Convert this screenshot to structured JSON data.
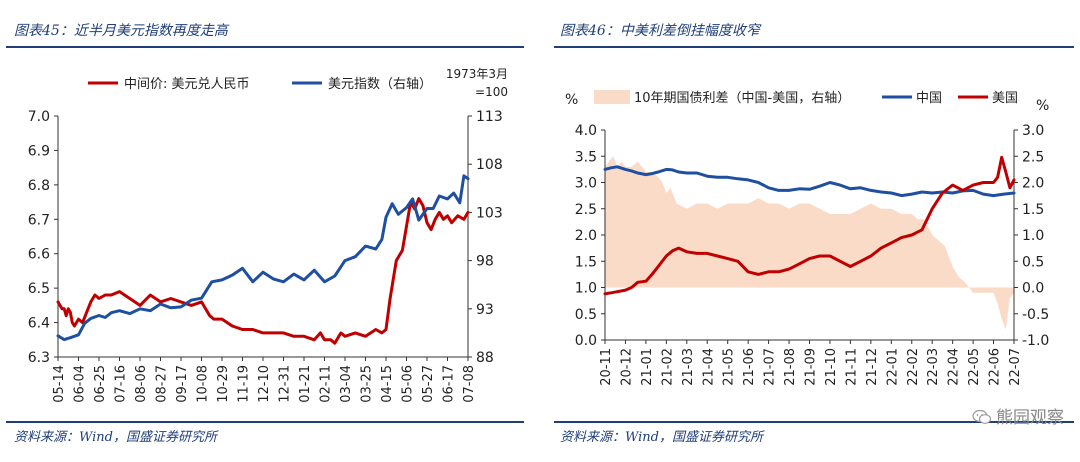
{
  "left": {
    "title": "图表45：近半月美元指数再度走高",
    "source": "资料来源：Wind，国盛证券研究所",
    "chart_data": {
      "type": "line",
      "legend": [
        "中间价: 美元兑人民币",
        "美元指数（右轴）"
      ],
      "right_axis_note": [
        "1973年3月",
        "=100"
      ],
      "x_ticks": [
        "05-14",
        "06-04",
        "06-25",
        "07-16",
        "08-06",
        "08-27",
        "09-17",
        "10-08",
        "10-29",
        "11-19",
        "12-10",
        "12-31",
        "01-21",
        "02-11",
        "03-04",
        "03-25",
        "04-15",
        "05-06",
        "05-27",
        "06-17",
        "07-08"
      ],
      "y_left_ticks": [
        "6.3",
        "6.4",
        "6.5",
        "6.6",
        "6.7",
        "6.8",
        "6.9",
        "7.0"
      ],
      "y_right_ticks": [
        "88",
        "93",
        "98",
        "103",
        "108",
        "113"
      ],
      "ylim_left": [
        6.3,
        7.0
      ],
      "ylim_right": [
        88,
        113
      ],
      "series": [
        {
          "name": "中间价: 美元兑人民币",
          "axis": "left",
          "color": "#c00000",
          "x": [
            0,
            0.1,
            0.2,
            0.3,
            0.4,
            0.5,
            0.6,
            0.7,
            0.8,
            1.0,
            1.2,
            1.4,
            1.6,
            1.8,
            2.0,
            2.3,
            2.6,
            3.0,
            3.5,
            4.0,
            4.5,
            5.0,
            5.5,
            6.0,
            6.5,
            7.0,
            7.4,
            7.6,
            8.0,
            8.5,
            9.0,
            9.5,
            10.0,
            10.5,
            11.0,
            11.5,
            12.0,
            12.5,
            12.8,
            13.0,
            13.3,
            13.5,
            13.8,
            14.0,
            14.5,
            15.0,
            15.5,
            15.8,
            16.0,
            16.2,
            16.5,
            16.8,
            17.0,
            17.2,
            17.4,
            17.6,
            17.8,
            18.0,
            18.2,
            18.4,
            18.6,
            18.8,
            19.0,
            19.2,
            19.5,
            19.8,
            20.0
          ],
          "values": [
            6.46,
            6.45,
            6.44,
            6.44,
            6.42,
            6.44,
            6.43,
            6.4,
            6.39,
            6.41,
            6.4,
            6.43,
            6.46,
            6.48,
            6.47,
            6.48,
            6.48,
            6.49,
            6.47,
            6.45,
            6.48,
            6.46,
            6.47,
            6.46,
            6.45,
            6.46,
            6.42,
            6.41,
            6.41,
            6.39,
            6.38,
            6.38,
            6.37,
            6.37,
            6.37,
            6.36,
            6.36,
            6.35,
            6.37,
            6.35,
            6.35,
            6.34,
            6.37,
            6.36,
            6.37,
            6.36,
            6.38,
            6.37,
            6.38,
            6.47,
            6.58,
            6.61,
            6.68,
            6.75,
            6.73,
            6.76,
            6.74,
            6.69,
            6.67,
            6.7,
            6.72,
            6.7,
            6.71,
            6.69,
            6.71,
            6.7,
            6.72
          ]
        },
        {
          "name": "美元指数（右轴）",
          "axis": "right",
          "color": "#1f4fa0",
          "x": [
            0,
            0.3,
            0.6,
            1.0,
            1.3,
            1.6,
            2.0,
            2.3,
            2.6,
            3.0,
            3.5,
            4.0,
            4.5,
            5.0,
            5.5,
            6.0,
            6.5,
            7.0,
            7.5,
            8.0,
            8.5,
            9.0,
            9.5,
            10.0,
            10.5,
            11.0,
            11.5,
            12.0,
            12.5,
            13.0,
            13.5,
            14.0,
            14.5,
            15.0,
            15.5,
            15.8,
            16.0,
            16.3,
            16.6,
            17.0,
            17.3,
            17.6,
            18.0,
            18.3,
            18.6,
            19.0,
            19.3,
            19.6,
            19.8,
            20.0
          ],
          "values": [
            90.2,
            89.8,
            90.0,
            90.3,
            91.5,
            92.0,
            92.3,
            92.1,
            92.6,
            92.8,
            92.5,
            93.0,
            92.8,
            93.5,
            93.1,
            93.2,
            93.9,
            94.1,
            95.8,
            96.0,
            96.5,
            97.2,
            95.8,
            96.8,
            96.1,
            95.8,
            96.6,
            96.0,
            97.0,
            95.8,
            96.4,
            98.0,
            98.4,
            99.5,
            99.2,
            100.2,
            102.5,
            103.9,
            102.8,
            103.5,
            104.4,
            102.2,
            103.4,
            103.4,
            104.7,
            104.4,
            105.0,
            104.0,
            106.8,
            106.5
          ]
        }
      ]
    }
  },
  "right": {
    "title": "图表46：中美利差倒挂幅度收窄",
    "source": "资料来源：Wind，国盛证券研究所",
    "chart_data": {
      "type": "line",
      "legend": [
        "10年期国债利差（中国-美国，右轴）",
        "中国",
        "美国"
      ],
      "left_unit": "%",
      "right_unit": "%",
      "x_ticks": [
        "20-11",
        "20-12",
        "21-01",
        "21-02",
        "21-03",
        "21-04",
        "21-05",
        "21-06",
        "21-07",
        "21-08",
        "21-09",
        "21-10",
        "21-11",
        "21-12",
        "22-01",
        "22-02",
        "22-03",
        "22-04",
        "22-05",
        "22-06",
        "22-07"
      ],
      "y_left_ticks": [
        "0.0",
        "0.5",
        "1.0",
        "1.5",
        "2.0",
        "2.5",
        "3.0",
        "3.5",
        "4.0"
      ],
      "y_right_ticks": [
        "-1.0",
        "-0.5",
        "0.0",
        "0.5",
        "1.0",
        "1.5",
        "2.0",
        "2.5",
        "3.0"
      ],
      "ylim_left": [
        0,
        4
      ],
      "ylim_right": [
        -1,
        3
      ],
      "series": [
        {
          "name": "10年期国债利差（中国-美国，右轴）",
          "axis": "right",
          "color": "#fadbc8",
          "type": "area",
          "x": [
            0,
            0.2,
            0.4,
            0.6,
            0.8,
            1.0,
            1.3,
            1.6,
            2.0,
            2.3,
            2.6,
            2.8,
            3.0,
            3.2,
            3.5,
            4.0,
            4.5,
            5.0,
            5.5,
            6.0,
            6.5,
            7.0,
            7.5,
            8.0,
            8.5,
            9.0,
            9.5,
            10.0,
            10.5,
            11.0,
            11.5,
            12.0,
            12.5,
            13.0,
            13.5,
            14.0,
            14.5,
            15.0,
            15.3,
            15.6,
            16.0,
            16.3,
            16.6,
            17.0,
            17.3,
            17.6,
            18.0,
            18.3,
            18.6,
            19.0,
            19.2,
            19.4,
            19.6,
            19.8,
            20.0
          ],
          "values": [
            2.3,
            2.4,
            2.5,
            2.3,
            2.4,
            2.3,
            2.3,
            2.4,
            2.2,
            2.2,
            2.1,
            2.0,
            1.8,
            1.9,
            1.6,
            1.5,
            1.6,
            1.6,
            1.5,
            1.6,
            1.6,
            1.6,
            1.7,
            1.6,
            1.6,
            1.5,
            1.6,
            1.6,
            1.5,
            1.4,
            1.4,
            1.4,
            1.5,
            1.6,
            1.5,
            1.5,
            1.4,
            1.4,
            1.3,
            1.3,
            1.0,
            0.9,
            0.8,
            0.4,
            0.2,
            0.1,
            -0.1,
            -0.1,
            -0.1,
            -0.1,
            -0.3,
            -0.6,
            -0.8,
            -0.2,
            -0.1
          ]
        },
        {
          "name": "中国",
          "axis": "left",
          "color": "#1f4fa0",
          "x": [
            0,
            0.3,
            0.6,
            1.0,
            1.3,
            1.6,
            2.0,
            2.3,
            2.6,
            3.0,
            3.3,
            3.6,
            4.0,
            4.5,
            5.0,
            5.5,
            6.0,
            6.5,
            7.0,
            7.5,
            8.0,
            8.5,
            9.0,
            9.5,
            10.0,
            10.5,
            11.0,
            11.5,
            12.0,
            12.5,
            13.0,
            13.5,
            14.0,
            14.5,
            15.0,
            15.5,
            16.0,
            16.5,
            17.0,
            17.5,
            18.0,
            18.5,
            19.0,
            19.5,
            20.0
          ],
          "values": [
            3.25,
            3.28,
            3.3,
            3.25,
            3.22,
            3.18,
            3.15,
            3.17,
            3.2,
            3.25,
            3.24,
            3.2,
            3.18,
            3.18,
            3.12,
            3.1,
            3.1,
            3.07,
            3.05,
            3.0,
            2.9,
            2.85,
            2.85,
            2.88,
            2.87,
            2.93,
            3.0,
            2.95,
            2.88,
            2.9,
            2.85,
            2.82,
            2.8,
            2.75,
            2.78,
            2.82,
            2.8,
            2.82,
            2.8,
            2.84,
            2.85,
            2.78,
            2.75,
            2.78,
            2.8
          ]
        },
        {
          "name": "美国",
          "axis": "left",
          "color": "#c00000",
          "x": [
            0,
            0.3,
            0.6,
            1.0,
            1.3,
            1.6,
            2.0,
            2.3,
            2.6,
            3.0,
            3.3,
            3.6,
            4.0,
            4.5,
            5.0,
            5.5,
            6.0,
            6.5,
            7.0,
            7.5,
            8.0,
            8.5,
            9.0,
            9.5,
            10.0,
            10.5,
            11.0,
            11.5,
            12.0,
            12.5,
            13.0,
            13.5,
            14.0,
            14.5,
            15.0,
            15.5,
            16.0,
            16.5,
            17.0,
            17.5,
            18.0,
            18.5,
            19.0,
            19.2,
            19.4,
            19.6,
            19.8,
            20.0
          ],
          "values": [
            0.88,
            0.9,
            0.92,
            0.95,
            1.0,
            1.1,
            1.12,
            1.25,
            1.4,
            1.6,
            1.7,
            1.75,
            1.68,
            1.65,
            1.65,
            1.6,
            1.55,
            1.5,
            1.3,
            1.25,
            1.3,
            1.3,
            1.35,
            1.45,
            1.55,
            1.6,
            1.6,
            1.5,
            1.4,
            1.5,
            1.6,
            1.75,
            1.85,
            1.95,
            2.0,
            2.1,
            2.5,
            2.8,
            2.95,
            2.85,
            2.95,
            3.0,
            3.0,
            3.1,
            3.48,
            3.2,
            2.9,
            3.05
          ]
        }
      ]
    }
  },
  "watermark": "熊园观察"
}
